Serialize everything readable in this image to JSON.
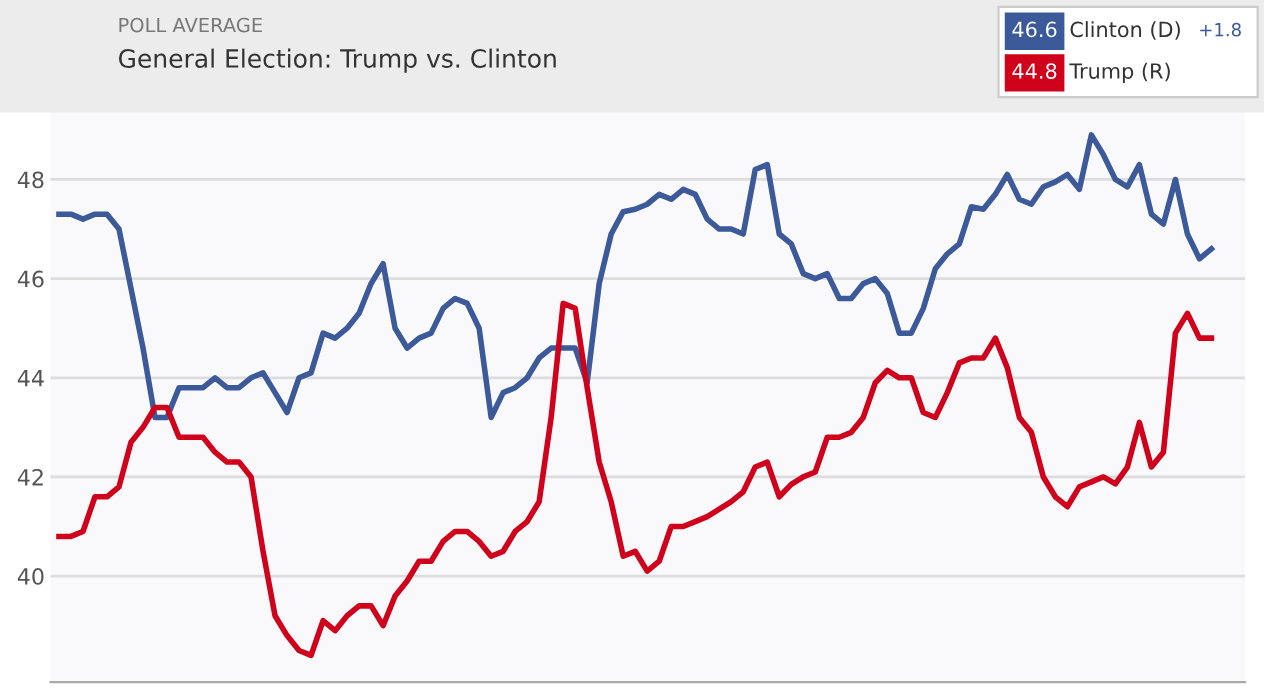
{
  "chart_data": {
    "type": "line",
    "subtitle": "POLL AVERAGE",
    "title": "General Election: Trump vs. Clinton",
    "categories": [
      null,
      null,
      null,
      null,
      null,
      null,
      null,
      null,
      null,
      null,
      null,
      null,
      null,
      null,
      null,
      null,
      null,
      null,
      null,
      null,
      null,
      null,
      null,
      null,
      null,
      null,
      null,
      null,
      null,
      null,
      null,
      null,
      null,
      null,
      null,
      null,
      null,
      null,
      null,
      null,
      null,
      null,
      null,
      null,
      null,
      null,
      null,
      null,
      null,
      null,
      null,
      null,
      null,
      null,
      null,
      null,
      null,
      null,
      null,
      null,
      null,
      null,
      null,
      null,
      null,
      null,
      null,
      null,
      null,
      null,
      null,
      null,
      null,
      null,
      null,
      null,
      null,
      null,
      null,
      null,
      null,
      null,
      null,
      null,
      null,
      null,
      null,
      null,
      null,
      null,
      null,
      null,
      null,
      null,
      null,
      null,
      null
    ],
    "series": [
      {
        "name": "Clinton (D)",
        "color": "#3c5a99",
        "values": [
          47.3,
          47.3,
          47.2,
          47.3,
          47.3,
          47.0,
          45.8,
          44.6,
          43.2,
          43.2,
          43.8,
          43.8,
          43.8,
          44.0,
          43.8,
          43.8,
          44.0,
          44.1,
          43.7,
          43.3,
          44.0,
          44.1,
          44.9,
          44.8,
          45.0,
          45.3,
          45.9,
          46.3,
          45.0,
          44.6,
          44.8,
          44.9,
          45.4,
          45.6,
          45.5,
          45.0,
          43.2,
          43.7,
          43.8,
          44.0,
          44.4,
          44.6,
          44.6,
          44.6,
          43.9,
          45.9,
          46.9,
          47.35,
          47.4,
          47.5,
          47.7,
          47.6,
          47.8,
          47.7,
          47.2,
          47.0,
          47.0,
          46.9,
          48.2,
          48.3,
          46.9,
          46.7,
          46.1,
          46.0,
          46.1,
          45.6,
          45.6,
          45.9,
          46.0,
          45.7,
          44.9,
          44.9,
          45.4,
          46.2,
          46.5,
          46.7,
          47.45,
          47.4,
          47.7,
          48.1,
          47.6,
          47.5,
          47.85,
          47.95,
          48.1,
          47.8,
          48.9,
          48.5,
          48.0,
          47.85,
          48.3,
          47.3,
          47.1,
          48.0,
          46.9,
          46.4,
          46.6
        ]
      },
      {
        "name": "Trump (R)",
        "color": "#d0021b",
        "values": [
          40.8,
          40.8,
          40.9,
          41.6,
          41.6,
          41.8,
          42.7,
          43.0,
          43.4,
          43.4,
          42.8,
          42.8,
          42.8,
          42.5,
          42.3,
          42.3,
          42.0,
          40.5,
          39.2,
          38.8,
          38.5,
          38.4,
          39.1,
          38.9,
          39.2,
          39.4,
          39.4,
          39.0,
          39.6,
          39.9,
          40.3,
          40.3,
          40.7,
          40.9,
          40.9,
          40.7,
          40.4,
          40.5,
          40.9,
          41.1,
          41.5,
          43.2,
          45.5,
          45.4,
          43.8,
          42.3,
          41.5,
          40.4,
          40.5,
          40.1,
          40.3,
          41.0,
          41.0,
          41.1,
          41.2,
          41.35,
          41.5,
          41.7,
          42.2,
          42.3,
          41.6,
          41.85,
          42.0,
          42.1,
          42.8,
          42.8,
          42.9,
          43.2,
          43.9,
          44.15,
          44.0,
          44.0,
          43.3,
          43.2,
          43.7,
          44.3,
          44.4,
          44.4,
          44.8,
          44.2,
          43.2,
          42.9,
          42.0,
          41.6,
          41.4,
          41.8,
          41.9,
          42.0,
          41.86,
          42.2,
          43.1,
          42.2,
          42.5,
          44.9,
          45.3,
          44.8,
          44.8
        ]
      }
    ],
    "annotations": [
      "46.6",
      "+1.8",
      "44.8"
    ],
    "ylim": [
      37.86,
      49.38
    ],
    "yticks": [
      40,
      42,
      44,
      46,
      48
    ],
    "grid": "y",
    "legend": "top right",
    "marker": "none",
    "line_style": "solid"
  }
}
